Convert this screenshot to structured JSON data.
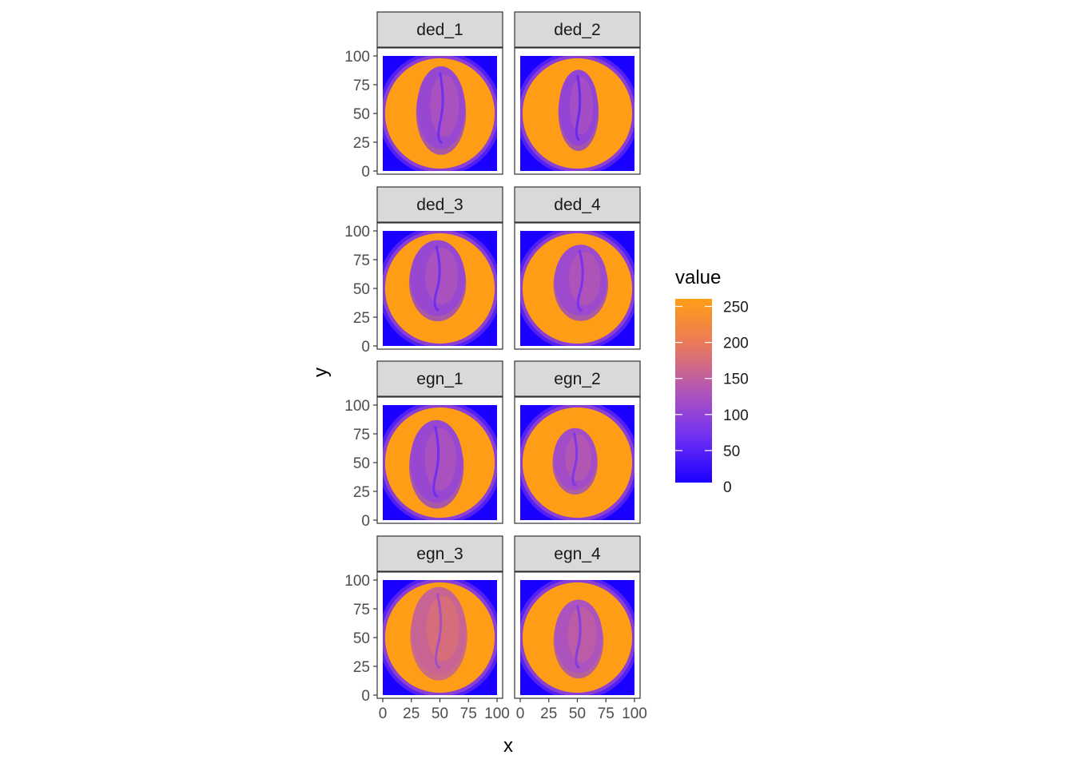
{
  "chart_data": {
    "type": "heatmap",
    "facet_layout": {
      "nrow": 4,
      "ncol": 2
    },
    "panels": [
      {
        "label": "ded_1",
        "bean": {
          "cx": 51,
          "cy": 55,
          "rx": 21,
          "ry": 36,
          "value": 100
        }
      },
      {
        "label": "ded_2",
        "bean": {
          "cx": 51,
          "cy": 55,
          "rx": 17,
          "ry": 33,
          "value": 95
        }
      },
      {
        "label": "ded_3",
        "bean": {
          "cx": 48,
          "cy": 59,
          "rx": 24,
          "ry": 33,
          "value": 100
        }
      },
      {
        "label": "ded_4",
        "bean": {
          "cx": 53,
          "cy": 57,
          "rx": 23,
          "ry": 31,
          "value": 105
        }
      },
      {
        "label": "egn_1",
        "bean": {
          "cx": 47,
          "cy": 51,
          "rx": 23,
          "ry": 36,
          "value": 100
        }
      },
      {
        "label": "egn_2",
        "bean": {
          "cx": 48,
          "cy": 53,
          "rx": 19,
          "ry": 27,
          "value": 110
        }
      },
      {
        "label": "egn_3",
        "bean": {
          "cx": 49,
          "cy": 56,
          "rx": 24,
          "ry": 38,
          "value": 150
        }
      },
      {
        "label": "egn_4",
        "bean": {
          "cx": 51,
          "cy": 51,
          "rx": 21,
          "ry": 32,
          "value": 120
        }
      }
    ],
    "background": {
      "circle_cx": 50,
      "circle_cy": 50,
      "circle_r": 48,
      "circle_value": 250,
      "corner_value": 0
    },
    "xlabel": "x",
    "ylabel": "y",
    "x_ticks": [
      "0",
      "25",
      "50",
      "75",
      "100"
    ],
    "y_ticks": [
      "0",
      "25",
      "50",
      "75",
      "100"
    ],
    "xlim": [
      0,
      100
    ],
    "ylim": [
      0,
      100
    ],
    "legend": {
      "title": "value",
      "labels": [
        "250",
        "200",
        "150",
        "100",
        "50",
        "0"
      ],
      "values": [
        250,
        200,
        150,
        100,
        50,
        0
      ],
      "position": "right",
      "low_color": "#1a00ff",
      "high_color": "#ff9e16"
    }
  }
}
